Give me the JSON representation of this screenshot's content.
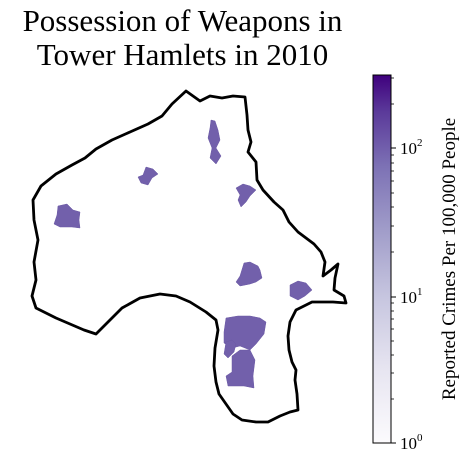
{
  "title": {
    "line1": "Possession of Weapons in",
    "line2": "Tower Hamlets in 2010"
  },
  "colorbar": {
    "label": "Reported Crimes Per 100,000 People",
    "scale": "log",
    "range": [
      1,
      300
    ],
    "ticks": [
      {
        "base": "10",
        "exp": "0",
        "value": 1
      },
      {
        "base": "10",
        "exp": "1",
        "value": 10
      },
      {
        "base": "10",
        "exp": "2",
        "value": 100
      }
    ],
    "color_low": "#f3f1f8",
    "color_high": "#3f007d"
  },
  "map": {
    "region": "Tower Hamlets",
    "outline_color": "#000000",
    "area_fill": "#7260ab"
  }
}
